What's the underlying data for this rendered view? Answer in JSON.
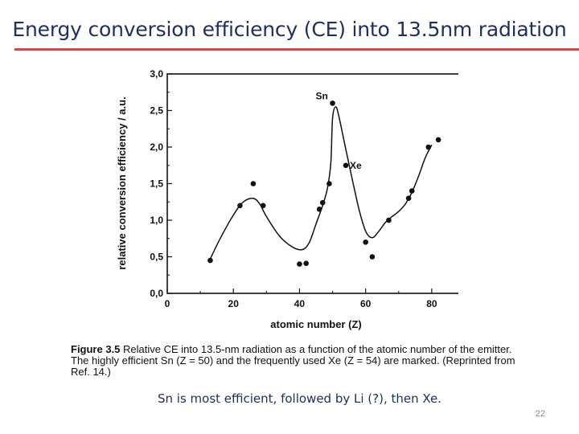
{
  "slide": {
    "title": "Energy conversion efficiency (CE) into 13.5nm radiation",
    "note": "Sn is most efficient, followed by Li (?), then Xe.",
    "page_number": "22",
    "accent_color": "#c0504d",
    "title_color": "#1d2f5a"
  },
  "caption": {
    "label": "Figure 3.5",
    "text": "Relative CE into 13.5-nm radiation as a function of the atomic number of the emitter. The highly efficient Sn (Z = 50) and the frequently used Xe (Z = 54) are marked. (Reprinted from Ref. 14.)"
  },
  "chart_data": {
    "type": "scatter",
    "title": "",
    "xlabel": "atomic number (Z)",
    "ylabel": "relative conversion efficiency / a.u.",
    "xlim": [
      0,
      90
    ],
    "ylim": [
      0,
      3.0
    ],
    "x_ticks": [
      0,
      20,
      40,
      60,
      80
    ],
    "x_tick_labels": [
      "0",
      "20",
      "40",
      "60",
      "80"
    ],
    "y_ticks": [
      0,
      0.5,
      1.0,
      1.5,
      2.0,
      2.5,
      3.0
    ],
    "y_tick_labels": [
      "0,0",
      "0,5",
      "1,0",
      "1,5",
      "2,0",
      "2,5",
      "3,0"
    ],
    "points": [
      {
        "x": 13,
        "y": 0.45
      },
      {
        "x": 22,
        "y": 1.2
      },
      {
        "x": 26,
        "y": 1.5
      },
      {
        "x": 29,
        "y": 1.2
      },
      {
        "x": 40,
        "y": 0.4
      },
      {
        "x": 42,
        "y": 0.41
      },
      {
        "x": 46,
        "y": 1.15
      },
      {
        "x": 47,
        "y": 1.24
      },
      {
        "x": 49,
        "y": 1.5
      },
      {
        "x": 50,
        "y": 2.6
      },
      {
        "x": 54,
        "y": 1.75
      },
      {
        "x": 60,
        "y": 0.7
      },
      {
        "x": 62,
        "y": 0.5
      },
      {
        "x": 67,
        "y": 1.0
      },
      {
        "x": 73,
        "y": 1.3
      },
      {
        "x": 74,
        "y": 1.4
      },
      {
        "x": 79,
        "y": 2.0
      },
      {
        "x": 82,
        "y": 2.1
      }
    ],
    "trend_line": {
      "x": [
        13,
        16,
        20,
        23,
        26,
        28,
        30,
        34,
        38,
        41,
        43,
        45,
        47,
        48.5,
        49.5,
        50,
        51,
        52,
        54,
        56,
        58,
        60,
        62,
        64,
        66,
        68,
        70,
        72,
        74,
        76,
        78,
        80
      ],
      "y": [
        0.47,
        0.75,
        1.07,
        1.25,
        1.3,
        1.22,
        1.05,
        0.78,
        0.63,
        0.6,
        0.7,
        0.95,
        1.2,
        1.45,
        1.8,
        2.4,
        2.55,
        2.4,
        1.97,
        1.55,
        1.15,
        0.85,
        0.76,
        0.85,
        0.97,
        1.05,
        1.12,
        1.22,
        1.38,
        1.6,
        1.85,
        2.03
      ]
    },
    "annotations": [
      {
        "text": "Sn",
        "x": 50,
        "y": 2.6
      },
      {
        "text": "Xe",
        "x": 54,
        "y": 1.75
      }
    ]
  }
}
